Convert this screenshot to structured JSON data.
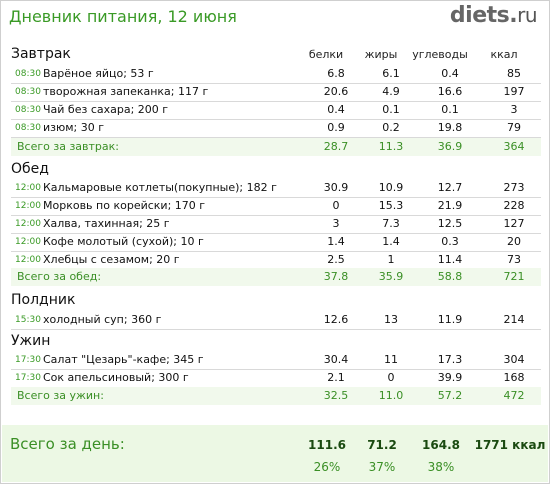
{
  "header": {
    "title": "Дневник питания, 12 июня",
    "logo_main": "diets",
    "logo_dot": ".",
    "logo_tld": "ru"
  },
  "columns": {
    "protein": "белки",
    "fat": "жиры",
    "carbs": "углеводы",
    "kcal": "ккал"
  },
  "meals": [
    {
      "name": "Завтрак",
      "items": [
        {
          "time": "08:30",
          "name": "Варёное яйцо; 53 г",
          "protein": "6.8",
          "fat": "6.1",
          "carbs": "0.4",
          "kcal": "85"
        },
        {
          "time": "08:30",
          "name": "творожная запеканка; 117 г",
          "protein": "20.6",
          "fat": "4.9",
          "carbs": "16.6",
          "kcal": "197"
        },
        {
          "time": "08:30",
          "name": "Чай без сахара; 200 г",
          "protein": "0.4",
          "fat": "0.1",
          "carbs": "0.1",
          "kcal": "3"
        },
        {
          "time": "08:30",
          "name": "изюм; 30 г",
          "protein": "0.9",
          "fat": "0.2",
          "carbs": "19.8",
          "kcal": "79"
        }
      ],
      "total": {
        "label": "Всего за завтрак:",
        "protein": "28.7",
        "fat": "11.3",
        "carbs": "36.9",
        "kcal": "364"
      }
    },
    {
      "name": "Обед",
      "items": [
        {
          "time": "12:00",
          "name": "Кальмаровые котлеты(покупные); 182 г",
          "protein": "30.9",
          "fat": "10.9",
          "carbs": "12.7",
          "kcal": "273"
        },
        {
          "time": "12:00",
          "name": "Морковь по корейски; 170 г",
          "protein": "0",
          "fat": "15.3",
          "carbs": "21.9",
          "kcal": "228"
        },
        {
          "time": "12:00",
          "name": "Халва, тахинная; 25 г",
          "protein": "3",
          "fat": "7.3",
          "carbs": "12.5",
          "kcal": "127"
        },
        {
          "time": "12:00",
          "name": "Кофе молотый (сухой); 10 г",
          "protein": "1.4",
          "fat": "1.4",
          "carbs": "0.3",
          "kcal": "20"
        },
        {
          "time": "12:00",
          "name": "Хлебцы с сезамом; 20 г",
          "protein": "2.5",
          "fat": "1",
          "carbs": "11.4",
          "kcal": "73"
        }
      ],
      "total": {
        "label": "Всего за обед:",
        "protein": "37.8",
        "fat": "35.9",
        "carbs": "58.8",
        "kcal": "721"
      }
    },
    {
      "name": "Полдник",
      "items": [
        {
          "time": "15:30",
          "name": "холодный суп; 360 г",
          "protein": "12.6",
          "fat": "13",
          "carbs": "11.9",
          "kcal": "214"
        }
      ]
    },
    {
      "name": "Ужин",
      "items": [
        {
          "time": "17:30",
          "name": "Салат \"Цезарь\"-кафе; 345 г",
          "protein": "30.4",
          "fat": "11",
          "carbs": "17.3",
          "kcal": "304"
        },
        {
          "time": "17:30",
          "name": "Сок апельсиновый; 300 г",
          "protein": "2.1",
          "fat": "0",
          "carbs": "39.9",
          "kcal": "168"
        }
      ],
      "total": {
        "label": "Всего за ужин:",
        "protein": "32.5",
        "fat": "11.0",
        "carbs": "57.2",
        "kcal": "472"
      }
    }
  ],
  "day_total": {
    "label": "Всего за день:",
    "protein": "111.6",
    "fat": "71.2",
    "carbs": "164.8",
    "kcal": "1771 ккал",
    "protein_pct": "26%",
    "fat_pct": "37%",
    "carbs_pct": "38%"
  }
}
